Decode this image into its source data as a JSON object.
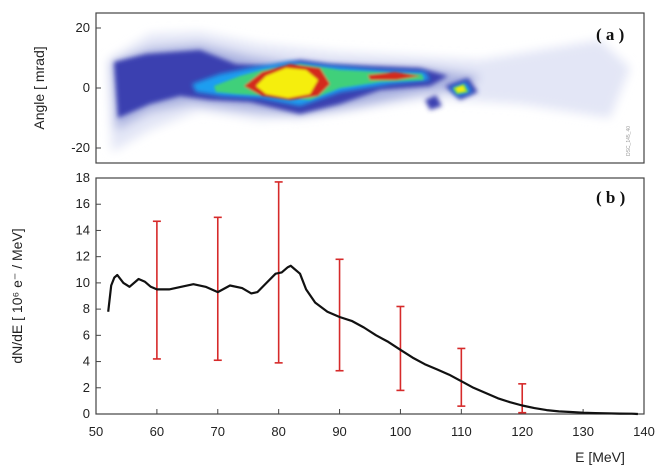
{
  "chart_data": [
    {
      "panel_label": "( a )",
      "type": "heatmap",
      "ylabel": "Angle  [ mrad]",
      "y_ticks": [
        20,
        0,
        -20
      ],
      "ylim": [
        -25,
        25
      ],
      "xlim": [
        50,
        140
      ],
      "stamp": "DSC_145_40",
      "colors": [
        "#3b3fb0",
        "#1a9ef0",
        "#3fd07a",
        "#8fe030",
        "#d42a1a",
        "#f5ee10"
      ]
    },
    {
      "panel_label": "( b )",
      "type": "line",
      "xlabel": "E [MeV]",
      "ylabel": "dN/dE  [ 10⁶ e⁻ / MeV]",
      "xlim": [
        50,
        140
      ],
      "ylim": [
        0,
        18
      ],
      "x_ticks": [
        50,
        60,
        70,
        80,
        90,
        100,
        110,
        120,
        130,
        140
      ],
      "y_ticks": [
        0,
        2,
        4,
        6,
        8,
        10,
        12,
        14,
        16,
        18
      ],
      "line_color": "#111111",
      "errorbar_color": "#d62a2a",
      "series": [
        {
          "x": [
            52.0,
            52.5,
            53.0,
            53.5,
            54.5,
            55.5,
            57.0,
            58.0,
            59.0,
            60.0,
            62.0,
            64.0,
            66.0,
            68.0,
            70.0,
            72.0,
            74.0,
            75.5,
            76.5,
            78.0,
            79.5,
            80.5,
            81.5,
            82.0,
            82.5,
            83.5,
            84.5,
            86.0,
            88.0,
            90.0,
            92.0,
            94.0,
            96.0,
            98.0,
            100.0,
            102.0,
            104.0,
            106.0,
            108.0,
            110.0,
            112.0,
            114.0,
            116.0,
            118.0,
            120.0,
            122.0,
            124.0,
            126.0,
            128.0,
            130.0,
            132.0,
            134.0,
            136.0,
            138.0,
            139.0
          ],
          "y": [
            7.8,
            9.8,
            10.4,
            10.6,
            10.0,
            9.7,
            10.3,
            10.1,
            9.7,
            9.5,
            9.5,
            9.7,
            9.9,
            9.7,
            9.3,
            9.8,
            9.6,
            9.2,
            9.3,
            10.0,
            10.7,
            10.8,
            11.2,
            11.3,
            11.1,
            10.7,
            9.5,
            8.5,
            7.8,
            7.4,
            7.1,
            6.6,
            6.0,
            5.5,
            4.9,
            4.3,
            3.8,
            3.4,
            3.0,
            2.5,
            2.0,
            1.6,
            1.2,
            0.9,
            0.65,
            0.45,
            0.3,
            0.2,
            0.15,
            0.1,
            0.07,
            0.05,
            0.03,
            0.02,
            0.0
          ]
        }
      ],
      "error_bars": [
        {
          "x": 60,
          "low": 4.2,
          "high": 14.7
        },
        {
          "x": 70,
          "low": 4.1,
          "high": 15.0
        },
        {
          "x": 80,
          "low": 3.9,
          "high": 17.7
        },
        {
          "x": 90,
          "low": 3.3,
          "high": 11.8
        },
        {
          "x": 100,
          "low": 1.8,
          "high": 8.2
        },
        {
          "x": 110,
          "low": 0.6,
          "high": 5.0
        },
        {
          "x": 120,
          "low": 0.1,
          "high": 2.3
        }
      ]
    }
  ]
}
